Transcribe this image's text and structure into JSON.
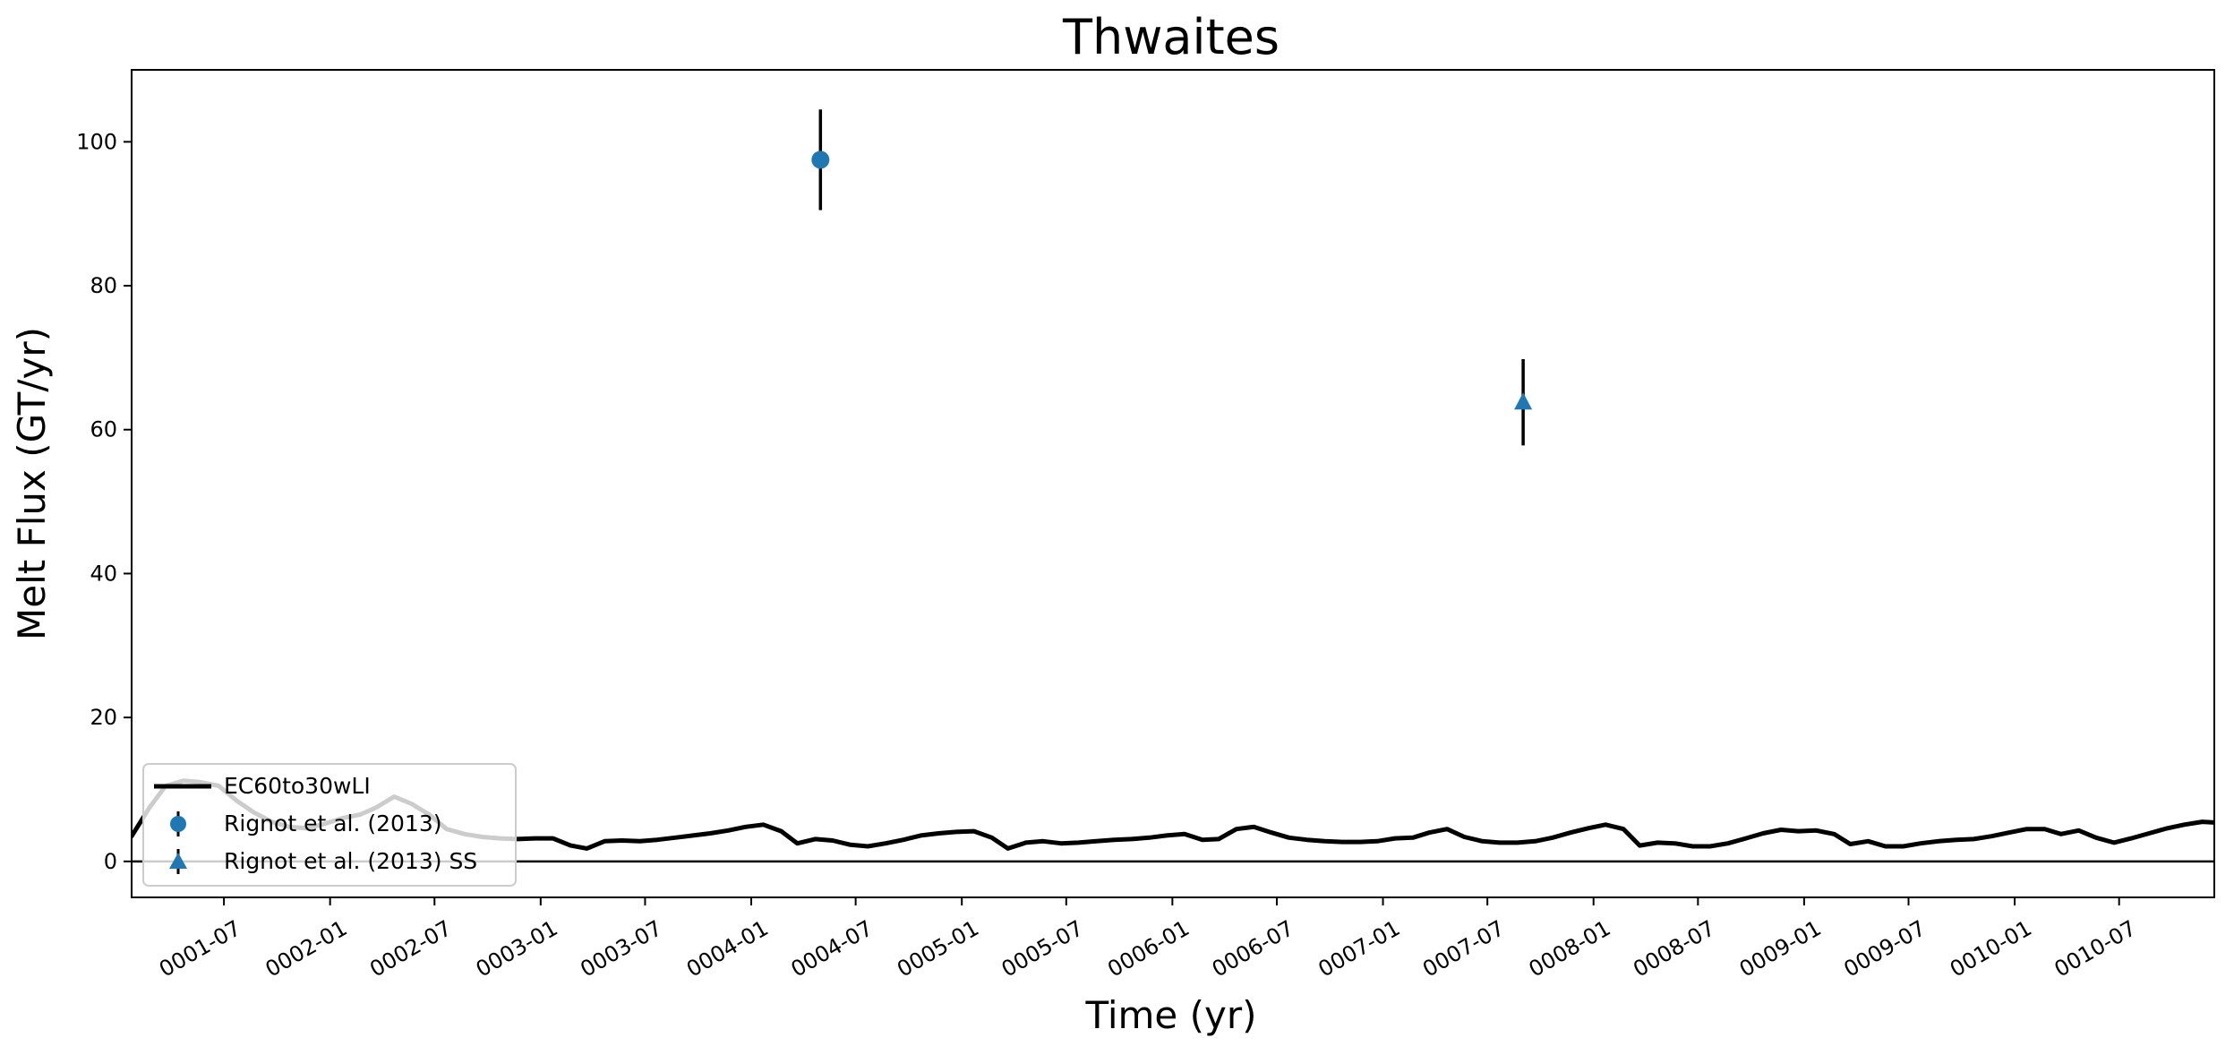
{
  "chart_data": {
    "type": "line",
    "title": "Thwaites",
    "xlabel": "Time (yr)",
    "ylabel": "Melt Flux (GT/yr)",
    "xlim": [
      "0001-01-22",
      "0010-12-13"
    ],
    "ylim": [
      -5,
      110
    ],
    "x_ticks": [
      "0001-07",
      "0002-01",
      "0002-07",
      "0003-01",
      "0003-07",
      "0004-01",
      "0004-07",
      "0005-01",
      "0005-07",
      "0006-01",
      "0006-07",
      "0007-01",
      "0007-07",
      "0008-01",
      "0008-07",
      "0009-01",
      "0009-07",
      "0010-01",
      "0010-07"
    ],
    "y_ticks": [
      0,
      20,
      40,
      60,
      80,
      100
    ],
    "zero_line": true,
    "grid": false,
    "legend_position": "lower left",
    "colors": {
      "model": "#000000",
      "obs": "#1f77b4"
    },
    "series": [
      {
        "name": "EC60to30wLI",
        "type": "line",
        "color": "#000000",
        "x": [
          "0001-01-22",
          "0001-02-22",
          "0001-03-22",
          "0001-04-22",
          "0001-05-22",
          "0001-06-22",
          "0001-07-22",
          "0001-08-22",
          "0001-09-22",
          "0001-10-22",
          "0001-11-22",
          "0001-12-22",
          "0002-01-22",
          "0002-02-22",
          "0002-03-22",
          "0002-04-22",
          "0002-05-22",
          "0002-06-22",
          "0002-07-22",
          "0002-08-22",
          "0002-09-22",
          "0002-10-22",
          "0002-11-22",
          "0002-12-22",
          "0003-01-22",
          "0003-02-22",
          "0003-03-22",
          "0003-04-22",
          "0003-05-22",
          "0003-06-22",
          "0003-07-22",
          "0003-08-22",
          "0003-09-22",
          "0003-10-22",
          "0003-11-22",
          "0003-12-22",
          "0004-01-22",
          "0004-02-22",
          "0004-03-22",
          "0004-04-22",
          "0004-05-22",
          "0004-06-22",
          "0004-07-22",
          "0004-08-22",
          "0004-09-22",
          "0004-10-22",
          "0004-11-22",
          "0004-12-22",
          "0005-01-22",
          "0005-02-22",
          "0005-03-22",
          "0005-04-22",
          "0005-05-22",
          "0005-06-22",
          "0005-07-22",
          "0005-08-22",
          "0005-09-22",
          "0005-10-22",
          "0005-11-22",
          "0005-12-22",
          "0006-01-22",
          "0006-02-22",
          "0006-03-22",
          "0006-04-22",
          "0006-05-22",
          "0006-06-22",
          "0006-07-22",
          "0006-08-22",
          "0006-09-22",
          "0006-10-22",
          "0006-11-22",
          "0006-12-22",
          "0007-01-22",
          "0007-02-22",
          "0007-03-22",
          "0007-04-22",
          "0007-05-22",
          "0007-06-22",
          "0007-07-22",
          "0007-08-22",
          "0007-09-22",
          "0007-10-22",
          "0007-11-22",
          "0007-12-22",
          "0008-01-22",
          "0008-02-22",
          "0008-03-22",
          "0008-04-22",
          "0008-05-22",
          "0008-06-22",
          "0008-07-22",
          "0008-08-22",
          "0008-09-22",
          "0008-10-22",
          "0008-11-22",
          "0008-12-22",
          "0009-01-22",
          "0009-02-22",
          "0009-03-22",
          "0009-04-22",
          "0009-05-22",
          "0009-06-22",
          "0009-07-22",
          "0009-08-22",
          "0009-09-22",
          "0009-10-22",
          "0009-11-22",
          "0009-12-22",
          "0010-01-22",
          "0010-02-22",
          "0010-03-22",
          "0010-04-22",
          "0010-05-22",
          "0010-06-22",
          "0010-07-22",
          "0010-08-22",
          "0010-09-22",
          "0010-10-22",
          "0010-11-22",
          "0010-12-13"
        ],
        "y": [
          3.5,
          7.5,
          10.5,
          11.2,
          11.0,
          10.5,
          8.5,
          6.8,
          5.5,
          4.8,
          4.6,
          5.2,
          6.0,
          6.5,
          7.5,
          9.0,
          8.0,
          6.5,
          4.5,
          3.8,
          3.4,
          3.2,
          3.1,
          3.2,
          3.2,
          2.2,
          1.8,
          2.8,
          2.9,
          2.8,
          3.0,
          3.3,
          3.6,
          3.9,
          4.3,
          4.8,
          5.1,
          4.2,
          2.5,
          3.1,
          2.9,
          2.3,
          2.1,
          2.5,
          3.0,
          3.6,
          3.9,
          4.1,
          4.2,
          3.3,
          1.8,
          2.6,
          2.8,
          2.5,
          2.6,
          2.8,
          3.0,
          3.1,
          3.3,
          3.6,
          3.8,
          3.0,
          3.1,
          4.5,
          4.8,
          4.0,
          3.3,
          3.0,
          2.8,
          2.7,
          2.7,
          2.8,
          3.2,
          3.3,
          4.0,
          4.5,
          3.4,
          2.8,
          2.6,
          2.6,
          2.8,
          3.3,
          4.0,
          4.6,
          5.1,
          4.5,
          2.2,
          2.6,
          2.5,
          2.1,
          2.1,
          2.5,
          3.2,
          3.9,
          4.4,
          4.2,
          4.3,
          3.8,
          2.4,
          2.8,
          2.1,
          2.1,
          2.5,
          2.8,
          3.0,
          3.1,
          3.5,
          4.0,
          4.5,
          4.5,
          3.8,
          4.3,
          3.3,
          2.6,
          3.2,
          3.9,
          4.6,
          5.1,
          5.5,
          5.4
        ]
      },
      {
        "name": "Rignot et al. (2013)",
        "type": "errorbar",
        "marker": "circle",
        "color": "#1f77b4",
        "x": [
          "0004-05-01"
        ],
        "y": [
          97.5
        ],
        "yerr": [
          7.0
        ]
      },
      {
        "name": "Rignot et al. (2013) SS",
        "type": "errorbar",
        "marker": "triangle",
        "color": "#1f77b4",
        "x": [
          "0007-09-01"
        ],
        "y": [
          63.8
        ],
        "yerr": [
          6.0
        ]
      }
    ]
  }
}
